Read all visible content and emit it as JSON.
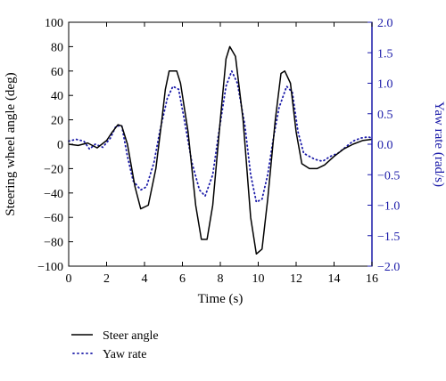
{
  "chart_data": {
    "type": "line",
    "title": "",
    "xlabel": "Time (s)",
    "ylabel": "Steering wheel angle (deg)",
    "y2label": "Yaw rate (rad/s)",
    "xlim": [
      0,
      16
    ],
    "ylim": [
      -100,
      100
    ],
    "y2lim": [
      -2.0,
      2.0
    ],
    "x_ticks": [
      "0",
      "2",
      "4",
      "6",
      "8",
      "10",
      "12",
      "14",
      "16"
    ],
    "y_ticks": [
      "100",
      "80",
      "60",
      "40",
      "20",
      "0",
      "−20",
      "−40",
      "−60",
      "−80",
      "−100"
    ],
    "y2_ticks": [
      "2.0",
      "1.5",
      "1.0",
      "0.5",
      "0.0",
      "−0.5",
      "−1.0",
      "−1.5",
      "−2.0"
    ],
    "grid": false,
    "legend_position": "bottom-left",
    "colors": {
      "steer": "#000000",
      "yaw": "#1a1aa8"
    },
    "series": [
      {
        "name": "Steer angle",
        "axis": "left",
        "style": "solid",
        "x": [
          0,
          0.5,
          1,
          1.5,
          2,
          2.3,
          2.6,
          2.8,
          3.1,
          3.5,
          3.8,
          4.2,
          4.6,
          4.9,
          5.1,
          5.3,
          5.7,
          5.9,
          6.3,
          6.7,
          7.0,
          7.3,
          7.6,
          8.0,
          8.3,
          8.5,
          8.8,
          9.2,
          9.6,
          9.9,
          10.2,
          10.5,
          10.9,
          11.2,
          11.4,
          11.7,
          12.0,
          12.3,
          12.7,
          13.1,
          13.5,
          14.0,
          14.5,
          15.0,
          15.5,
          16.0
        ],
        "y": [
          0,
          -1,
          1,
          -3,
          3,
          10,
          16,
          15,
          0,
          -35,
          -53,
          -50,
          -20,
          18,
          45,
          60,
          60,
          50,
          10,
          -50,
          -78,
          -78,
          -50,
          20,
          70,
          80,
          72,
          20,
          -60,
          -90,
          -86,
          -45,
          20,
          58,
          60,
          50,
          10,
          -16,
          -20,
          -20,
          -17,
          -10,
          -4,
          0,
          3,
          4
        ]
      },
      {
        "name": "Yaw rate",
        "axis": "right",
        "style": "dotted",
        "x": [
          0,
          0.4,
          0.8,
          1.1,
          1.4,
          1.8,
          2.2,
          2.5,
          2.8,
          3.1,
          3.4,
          3.8,
          4.1,
          4.5,
          4.8,
          5.2,
          5.5,
          5.8,
          6.1,
          6.5,
          6.9,
          7.2,
          7.6,
          7.9,
          8.3,
          8.6,
          8.9,
          9.3,
          9.6,
          9.9,
          10.2,
          10.5,
          10.8,
          11.1,
          11.5,
          11.8,
          12.1,
          12.4,
          12.7,
          13.0,
          13.4,
          13.8,
          14.2,
          14.6,
          15.0,
          15.4,
          15.8,
          16.0
        ],
        "y": [
          0.05,
          0.08,
          0.05,
          -0.08,
          0.0,
          -0.05,
          0.1,
          0.3,
          0.3,
          -0.2,
          -0.6,
          -0.75,
          -0.7,
          -0.3,
          0.2,
          0.75,
          0.95,
          0.9,
          0.4,
          -0.3,
          -0.75,
          -0.85,
          -0.5,
          0.15,
          0.95,
          1.2,
          1.0,
          0.3,
          -0.5,
          -0.95,
          -0.9,
          -0.5,
          0.1,
          0.6,
          0.95,
          0.85,
          0.2,
          -0.15,
          -0.2,
          -0.25,
          -0.28,
          -0.2,
          -0.15,
          -0.05,
          0.05,
          0.1,
          0.12,
          0.1
        ]
      }
    ]
  }
}
